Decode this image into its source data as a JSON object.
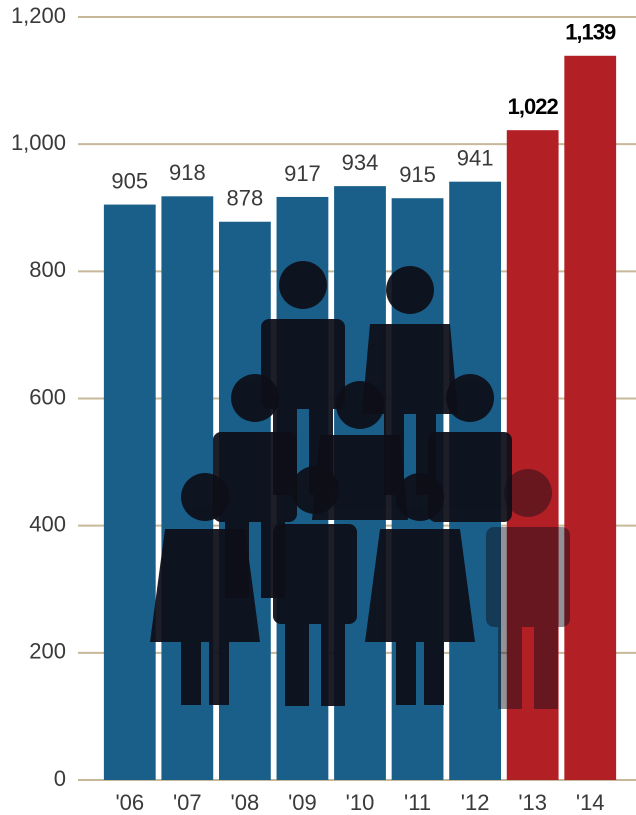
{
  "chart_data": {
    "type": "bar",
    "categories": [
      "'06",
      "'07",
      "'08",
      "'09",
      "'10",
      "'11",
      "'12",
      "'13",
      "'14"
    ],
    "values": [
      905,
      918,
      878,
      917,
      934,
      915,
      941,
      1022,
      1139
    ],
    "value_labels": [
      "905",
      "918",
      "878",
      "917",
      "934",
      "915",
      "941",
      "1,022",
      "1,139"
    ],
    "colors": [
      "#1a5f8a",
      "#1a5f8a",
      "#1a5f8a",
      "#1a5f8a",
      "#1a5f8a",
      "#1a5f8a",
      "#1a5f8a",
      "#b22025",
      "#b22025"
    ],
    "highlight_color": "#b22025",
    "ylim": [
      0,
      1200
    ],
    "yticks": [
      0,
      200,
      400,
      600,
      800,
      {
        "value": 1000,
        "label": "1,000"
      },
      {
        "value": 1200,
        "label": "1,200"
      }
    ],
    "grid": true,
    "grid_color": "#c8b89a"
  }
}
